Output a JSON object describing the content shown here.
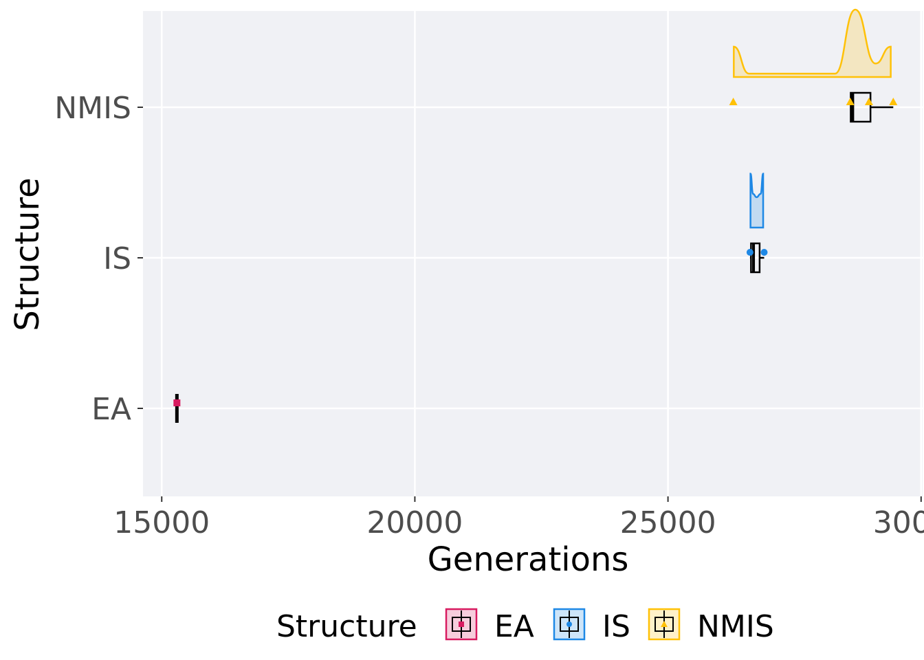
{
  "chart_data": {
    "type": "raincloud",
    "title": "",
    "xlabel": "Generations",
    "ylabel": "Structure",
    "xlim": [
      14630,
      30030
    ],
    "x_ticks": [
      15000,
      20000,
      25000,
      30000
    ],
    "x_tick_labels": [
      "15000",
      "20000",
      "25000",
      "30000"
    ],
    "categories": [
      "EA",
      "IS",
      "NMIS"
    ],
    "grid": true,
    "legend": {
      "title": "Structure",
      "position": "bottom",
      "entries": [
        "EA",
        "IS",
        "NMIS"
      ]
    },
    "colors": {
      "EA": "#d81b60",
      "IS": "#1e88e5",
      "NMIS": "#ffc107",
      "panel": "#f0f1f5",
      "grid": "#ffffff"
    },
    "series": [
      {
        "name": "EA",
        "shape": "square",
        "box": {
          "min": 15300,
          "q1": 15300,
          "median": 15300,
          "q3": 15300,
          "max": 15300
        },
        "points": [
          15300
        ],
        "density": []
      },
      {
        "name": "IS",
        "shape": "circle",
        "box": {
          "min": 26620,
          "q1": 26640,
          "median": 26690,
          "q3": 26810,
          "max": 26900
        },
        "points": [
          26620,
          26900
        ],
        "density": [
          [
            26630,
            0.8
          ],
          [
            26680,
            0.5
          ],
          [
            26750,
            0.45
          ],
          [
            26830,
            0.5
          ],
          [
            26880,
            0.8
          ]
        ]
      },
      {
        "name": "NMIS",
        "shape": "triangle",
        "box": {
          "min": 28600,
          "q1": 28610,
          "median": 28650,
          "q3": 29000,
          "max": 29450
        },
        "points": [
          26290,
          28600,
          28970,
          29450
        ],
        "density": [
          [
            26300,
            0.45
          ],
          [
            26600,
            0.05
          ],
          [
            28300,
            0.05
          ],
          [
            28700,
            1.0
          ],
          [
            29100,
            0.2
          ],
          [
            29400,
            0.45
          ]
        ]
      }
    ]
  }
}
